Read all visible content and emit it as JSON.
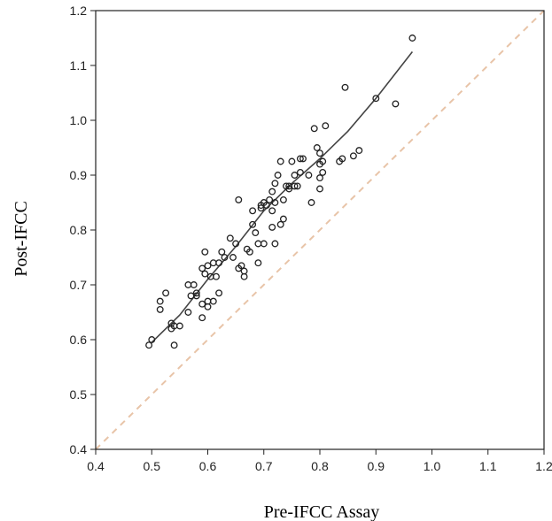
{
  "chart_data": {
    "type": "scatter",
    "title": "",
    "xlabel": "Pre-IFCC Assay",
    "ylabel": "Post-IFCC",
    "xlim": [
      0.4,
      1.2
    ],
    "ylim": [
      0.4,
      1.2
    ],
    "xticks": [
      "0.4",
      "0.5",
      "0.6",
      "0.7",
      "0.8",
      "0.9",
      "1.0",
      "1.1",
      "1.2"
    ],
    "yticks": [
      "0.4",
      "0.5",
      "0.6",
      "0.7",
      "0.8",
      "0.9",
      "1.0",
      "1.1",
      "1.2"
    ],
    "grid": false,
    "legend": "none",
    "colors": {
      "points": "#222222",
      "fit_line": "#444444",
      "identity_line": "#e8c4a8",
      "axes": "#222222"
    },
    "series": [
      {
        "type": "scatter",
        "x": [
          0.495,
          0.5,
          0.515,
          0.515,
          0.525,
          0.535,
          0.535,
          0.54,
          0.54,
          0.55,
          0.565,
          0.565,
          0.57,
          0.575,
          0.58,
          0.58,
          0.59,
          0.59,
          0.59,
          0.595,
          0.595,
          0.6,
          0.6,
          0.6,
          0.605,
          0.61,
          0.61,
          0.615,
          0.62,
          0.62,
          0.625,
          0.63,
          0.64,
          0.645,
          0.65,
          0.655,
          0.655,
          0.66,
          0.665,
          0.665,
          0.67,
          0.675,
          0.68,
          0.68,
          0.685,
          0.69,
          0.69,
          0.695,
          0.695,
          0.7,
          0.7,
          0.705,
          0.71,
          0.715,
          0.715,
          0.715,
          0.72,
          0.72,
          0.72,
          0.725,
          0.73,
          0.73,
          0.735,
          0.735,
          0.74,
          0.745,
          0.745,
          0.75,
          0.755,
          0.755,
          0.76,
          0.765,
          0.765,
          0.77,
          0.78,
          0.785,
          0.79,
          0.795,
          0.8,
          0.8,
          0.8,
          0.8,
          0.805,
          0.805,
          0.81,
          0.835,
          0.84,
          0.845,
          0.86,
          0.87,
          0.9,
          0.935,
          0.965
        ],
        "y": [
          0.59,
          0.6,
          0.655,
          0.67,
          0.685,
          0.62,
          0.63,
          0.59,
          0.625,
          0.625,
          0.65,
          0.7,
          0.68,
          0.7,
          0.68,
          0.685,
          0.64,
          0.665,
          0.73,
          0.72,
          0.76,
          0.66,
          0.67,
          0.735,
          0.715,
          0.67,
          0.74,
          0.715,
          0.685,
          0.74,
          0.76,
          0.75,
          0.785,
          0.75,
          0.775,
          0.73,
          0.855,
          0.735,
          0.715,
          0.725,
          0.765,
          0.76,
          0.81,
          0.835,
          0.795,
          0.74,
          0.775,
          0.84,
          0.845,
          0.775,
          0.85,
          0.845,
          0.855,
          0.805,
          0.835,
          0.87,
          0.885,
          0.775,
          0.85,
          0.9,
          0.81,
          0.925,
          0.82,
          0.855,
          0.88,
          0.875,
          0.88,
          0.925,
          0.88,
          0.9,
          0.88,
          0.905,
          0.93,
          0.93,
          0.9,
          0.85,
          0.985,
          0.95,
          0.875,
          0.92,
          0.895,
          0.94,
          0.905,
          0.925,
          0.99,
          0.925,
          0.93,
          1.06,
          0.935,
          0.945,
          1.04,
          1.03,
          1.15
        ]
      },
      {
        "type": "line",
        "x": [
          0.5,
          0.55,
          0.6,
          0.65,
          0.7,
          0.75,
          0.8,
          0.85,
          0.9,
          0.965
        ],
        "y": [
          0.595,
          0.645,
          0.71,
          0.77,
          0.835,
          0.885,
          0.93,
          0.98,
          1.04,
          1.125
        ]
      },
      {
        "type": "line",
        "style": "dashed",
        "x": [
          0.4,
          1.2
        ],
        "y": [
          0.4,
          1.2
        ]
      }
    ]
  }
}
